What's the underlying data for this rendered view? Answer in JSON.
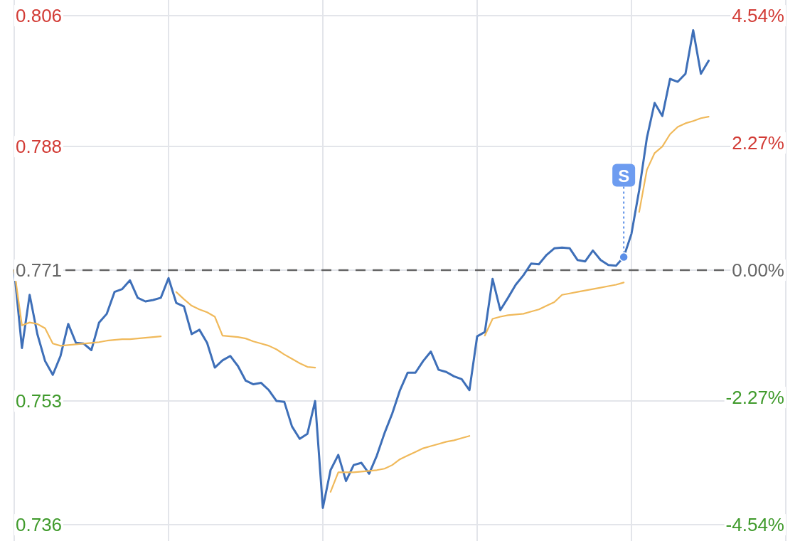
{
  "chart_data": {
    "type": "line",
    "categories": [
      null,
      null,
      null,
      null,
      null,
      null,
      null,
      null,
      null,
      null,
      null,
      null,
      null,
      null,
      null,
      null,
      null,
      null,
      null,
      null,
      null,
      null,
      null,
      null,
      null,
      null,
      null,
      null,
      null,
      null,
      null,
      null,
      null,
      null,
      null,
      null,
      null,
      null,
      null,
      null,
      null,
      null,
      null,
      null,
      null,
      null,
      null,
      null,
      null,
      null,
      null,
      null,
      null,
      null,
      null,
      null,
      null,
      null,
      null,
      null,
      null,
      null,
      null,
      null,
      null,
      null,
      null,
      null,
      null,
      null,
      null,
      null,
      null,
      null,
      null,
      null,
      null,
      null,
      null,
      null,
      null,
      null,
      null,
      null,
      null,
      null,
      null,
      null,
      null,
      null,
      null,
      null,
      null,
      null,
      null,
      null,
      null,
      null,
      null,
      null,
      null
    ],
    "ylim": [
      0.736,
      0.806
    ],
    "yticks": [
      0.736,
      0.753,
      0.771,
      0.788,
      0.806
    ],
    "y2lim": [
      -4.54,
      4.54
    ],
    "y2ticks": [
      {
        "value": -4.54,
        "label": "-4.54%"
      },
      {
        "value": -2.27,
        "label": "-2.27%"
      },
      {
        "value": 0,
        "label": "0.00%"
      },
      {
        "value": 2.27,
        "label": "2.27%"
      },
      {
        "value": 4.54,
        "label": "4.54%"
      }
    ],
    "tick_labels": "y",
    "grid": true,
    "marker": "none",
    "line_style": "solid",
    "ref_lines": [
      {
        "axis": "y",
        "value": 0.771,
        "label": null,
        "color": "#666666",
        "line_style": "dashed"
      }
    ],
    "annotations": [
      {
        "text": "S",
        "y": 0.7728
      }
    ],
    "series": [
      {
        "color": "#3e6fb8",
        "values": [
          0.771,
          0.7603,
          0.7676,
          0.7622,
          0.7585,
          0.7566,
          0.7592,
          0.7636,
          0.761,
          0.7609,
          0.76,
          0.7638,
          0.765,
          0.768,
          0.7684,
          0.7696,
          0.7672,
          0.7667,
          0.7669,
          0.7672,
          0.7699,
          0.7665,
          0.766,
          0.7622,
          0.7628,
          0.761,
          0.7576,
          0.7586,
          0.7592,
          0.7578,
          0.7558,
          0.7553,
          0.7555,
          0.7545,
          0.753,
          0.7529,
          0.7495,
          0.7478,
          0.7485,
          0.753,
          0.7383,
          0.7435,
          0.7456,
          0.742,
          0.7442,
          0.7445,
          0.743,
          0.7455,
          0.7486,
          0.7513,
          0.7545,
          0.7569,
          0.7569,
          0.7585,
          0.7598,
          0.7573,
          0.757,
          0.7564,
          0.756,
          0.7545,
          0.7619,
          0.7625,
          0.7698,
          0.7655,
          0.7672,
          0.769,
          0.7703,
          0.7719,
          0.7718,
          0.7731,
          0.774,
          0.7741,
          0.774,
          0.7724,
          0.7722,
          0.7737,
          0.7724,
          0.7717,
          0.7716,
          0.7728,
          0.776,
          0.782,
          0.7892,
          0.794,
          0.7922,
          0.7973,
          0.7969,
          0.798,
          0.804,
          0.798,
          0.7998,
          null,
          null,
          null,
          null,
          null,
          null,
          null,
          null,
          null,
          null
        ]
      },
      {
        "color": "#f0b95a",
        "values": [
          0.771,
          0.7634,
          0.7638,
          0.7636,
          0.763,
          0.7609,
          0.7606,
          0.7607,
          0.7608,
          0.7609,
          0.761,
          0.7611,
          0.7613,
          0.7614,
          0.7615,
          0.7615,
          0.7616,
          0.7617,
          0.7618,
          0.7619,
          null,
          0.768,
          0.767,
          0.7661,
          0.7656,
          0.7652,
          0.7646,
          0.762,
          0.7619,
          0.7618,
          0.7616,
          0.7612,
          0.7609,
          0.7606,
          0.7601,
          0.7594,
          0.7588,
          0.7582,
          0.7577,
          0.7576,
          null,
          0.7405,
          0.7432,
          0.7432,
          0.7432,
          0.7433,
          0.7434,
          0.7435,
          0.7437,
          0.7442,
          0.745,
          0.7455,
          0.746,
          0.7465,
          0.7468,
          0.7471,
          0.7474,
          0.7476,
          0.7479,
          0.7482,
          null,
          0.762,
          0.7643,
          0.7646,
          0.7648,
          0.7649,
          0.765,
          0.7653,
          0.7656,
          0.7661,
          0.7666,
          0.7676,
          0.7678,
          0.768,
          0.7682,
          0.7684,
          0.7686,
          0.7688,
          0.769,
          0.7693,
          null,
          0.779,
          0.7848,
          0.7871,
          0.788,
          0.7897,
          0.7907,
          0.7912,
          0.7915,
          0.7919,
          0.7921,
          null,
          null,
          null,
          null,
          null,
          null,
          null,
          null,
          null,
          null
        ]
      }
    ]
  }
}
